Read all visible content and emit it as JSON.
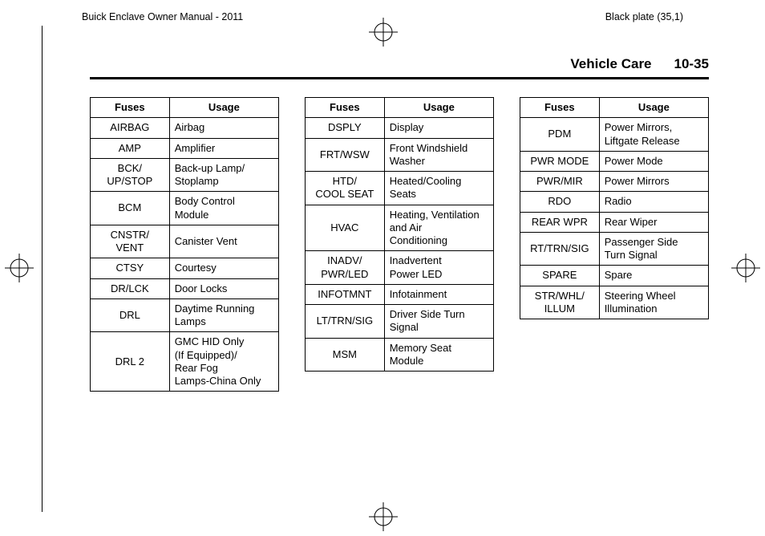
{
  "header": {
    "left": "Buick Enclave Owner Manual - 2011",
    "right": "Black plate (35,1)"
  },
  "section": {
    "title": "Vehicle Care",
    "page": "10-35"
  },
  "tables": {
    "headers": {
      "fuses": "Fuses",
      "usage": "Usage"
    },
    "col1": [
      {
        "f": "AIRBAG",
        "u": "Airbag"
      },
      {
        "f": "AMP",
        "u": "Amplifier"
      },
      {
        "f": "BCK/\nUP/STOP",
        "u": "Back-up Lamp/\nStoplamp"
      },
      {
        "f": "BCM",
        "u": "Body Control\nModule"
      },
      {
        "f": "CNSTR/\nVENT",
        "u": "Canister Vent"
      },
      {
        "f": "CTSY",
        "u": "Courtesy"
      },
      {
        "f": "DR/LCK",
        "u": "Door Locks"
      },
      {
        "f": "DRL",
        "u": "Daytime Running\nLamps"
      },
      {
        "f": "DRL 2",
        "u": "GMC HID Only\n(If Equipped)/\nRear Fog\nLamps-China Only"
      }
    ],
    "col2": [
      {
        "f": "DSPLY",
        "u": "Display"
      },
      {
        "f": "FRT/WSW",
        "u": "Front Windshield\nWasher"
      },
      {
        "f": "HTD/\nCOOL SEAT",
        "u": "Heated/Cooling\nSeats"
      },
      {
        "f": "HVAC",
        "u": "Heating, Ventilation\nand Air\nConditioning"
      },
      {
        "f": "INADV/\nPWR/LED",
        "u": "Inadvertent\nPower LED"
      },
      {
        "f": "INFOTMNT",
        "u": "Infotainment"
      },
      {
        "f": "LT/TRN/SIG",
        "u": "Driver Side Turn\nSignal"
      },
      {
        "f": "MSM",
        "u": "Memory Seat\nModule"
      }
    ],
    "col3": [
      {
        "f": "PDM",
        "u": "Power Mirrors,\nLiftgate Release"
      },
      {
        "f": "PWR MODE",
        "u": "Power Mode"
      },
      {
        "f": "PWR/MIR",
        "u": "Power Mirrors"
      },
      {
        "f": "RDO",
        "u": "Radio"
      },
      {
        "f": "REAR WPR",
        "u": "Rear Wiper"
      },
      {
        "f": "RT/TRN/SIG",
        "u": "Passenger Side\nTurn Signal"
      },
      {
        "f": "SPARE",
        "u": "Spare"
      },
      {
        "f": "STR/WHL/\nILLUM",
        "u": "Steering Wheel\nIllumination"
      }
    ]
  },
  "style": {
    "text_color": "#000000",
    "bg_color": "#ffffff",
    "border_color": "#000000",
    "header_fontsize": 12.5,
    "section_fontsize": 17,
    "cell_fontsize": 13,
    "divider_thickness": 3,
    "column_gap": 32
  }
}
